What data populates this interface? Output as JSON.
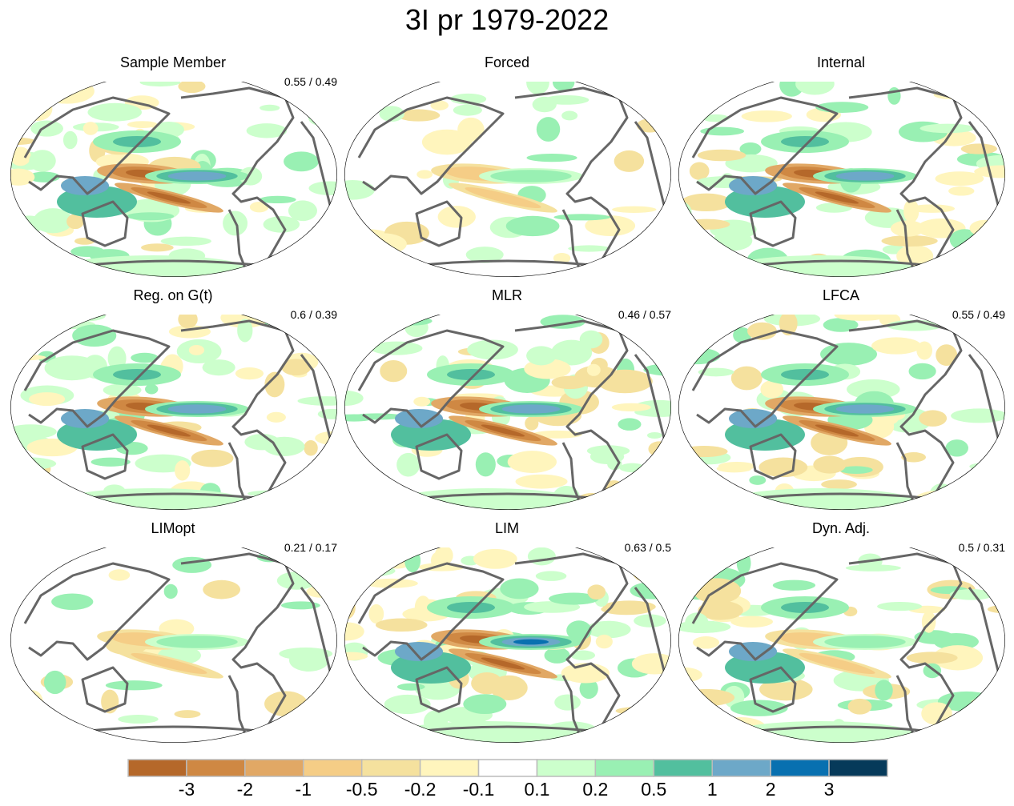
{
  "title": "3I pr 1979-2022",
  "panels": [
    {
      "title": "Sample Member",
      "stat": "0.55 / 0.49"
    },
    {
      "title": "Forced",
      "stat": ""
    },
    {
      "title": "Internal",
      "stat": ""
    },
    {
      "title": "Reg. on G(t)",
      "stat": "0.6 / 0.39"
    },
    {
      "title": "MLR",
      "stat": "0.46 / 0.57"
    },
    {
      "title": "LFCA",
      "stat": "0.55 / 0.49"
    },
    {
      "title": "LIMopt",
      "stat": "0.21 / 0.17"
    },
    {
      "title": "LIM",
      "stat": "0.63 / 0.5"
    },
    {
      "title": "Dyn. Adj.",
      "stat": "0.5 / 0.31"
    }
  ],
  "colorbar": {
    "colors": [
      "#b5682a",
      "#cf8843",
      "#e1a865",
      "#f5cd86",
      "#f5e19e",
      "#fff5bd",
      "#ffffff",
      "#ccffcc",
      "#99f0b3",
      "#52bf9e",
      "#6da8c8",
      "#0870b0",
      "#063a5a"
    ],
    "labels": [
      "-3",
      "-2",
      "-1",
      "-0.5",
      "-0.2",
      "-0.1",
      "0.1",
      "0.2",
      "0.5",
      "1",
      "2",
      "3"
    ]
  },
  "style": {
    "coastline_color": "#666666",
    "outline_color": "#000000"
  }
}
